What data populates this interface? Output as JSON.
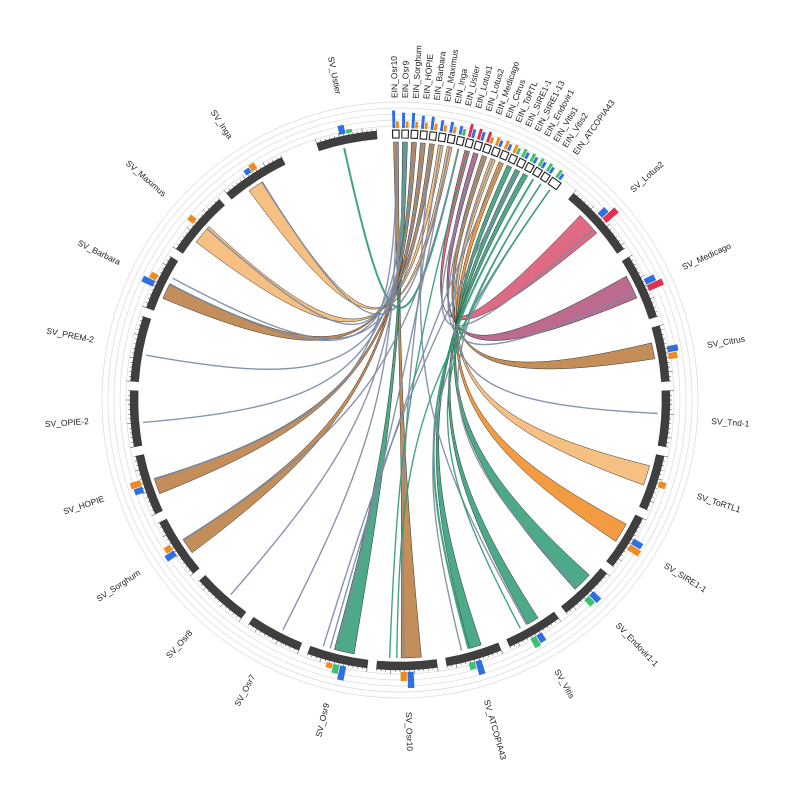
{
  "diagram": {
    "colors": {
      "arc_fill": "#3f3f3f",
      "ring_line": "#d9d9d9",
      "grey_link": "#7b8aa3",
      "green_link": "#2e9b73",
      "brown_link": "#b97a3c",
      "light_orange_link": "#f5b56c",
      "orange_link": "#f08a1e",
      "pink_link": "#d9506e",
      "mauve_link": "#b0507a",
      "bar_blue": "#2f6fe0",
      "bar_orange": "#f08a1e",
      "bar_green": "#3fbf6f",
      "bar_red": "#e0304a"
    },
    "segments": [
      {
        "label": "SV_Ustier"
      },
      {
        "label": "EIN_Osr10"
      },
      {
        "label": "EIN_Osr9"
      },
      {
        "label": "EIN_Sorghum"
      },
      {
        "label": "EIN_HOPIE"
      },
      {
        "label": "EIN_Barbara"
      },
      {
        "label": "EIN_Maximus"
      },
      {
        "label": "EIN_Inga"
      },
      {
        "label": "EIN_Ustier"
      },
      {
        "label": "EIN_Lotus1"
      },
      {
        "label": "EIN_Lotus2"
      },
      {
        "label": "EIN_Medicago"
      },
      {
        "label": "EIN_Citrus"
      },
      {
        "label": "EIN_ToRTL"
      },
      {
        "label": "EIN_SIRE1-1"
      },
      {
        "label": "EIN_SIRE1-13"
      },
      {
        "label": "EIN_Endovir1"
      },
      {
        "label": "EIN_Vitis1"
      },
      {
        "label": "EIN_Vitis2"
      },
      {
        "label": "EIN_ATCOPIA43"
      },
      {
        "label": "SV_Lotus2"
      },
      {
        "label": "SV_Medicago"
      },
      {
        "label": "SV_Citrus"
      },
      {
        "label": "SV_Tnd-1"
      },
      {
        "label": "SV_ToRTL1"
      },
      {
        "label": "SV_SIRE1-1"
      },
      {
        "label": "SV_Endovir1-1"
      },
      {
        "label": "SV_Vitis"
      },
      {
        "label": "SV_ATCOPIA43"
      },
      {
        "label": "SV_Osr10"
      },
      {
        "label": "SV_Osr9"
      },
      {
        "label": "SV_Osr7"
      },
      {
        "label": "SV_Osr8"
      },
      {
        "label": "SV_Sorghum"
      },
      {
        "label": "SV_HOPIE"
      },
      {
        "label": "SV_OPIE-2"
      },
      {
        "label": "SV_PREM-2"
      },
      {
        "label": "SV_Barbara"
      },
      {
        "label": "SV_Maximus"
      },
      {
        "label": "SV_Inga"
      }
    ],
    "links": [
      {
        "from": "EIN_Osr10",
        "to": "SV_Osr10",
        "color": "brown_link",
        "width": 5
      },
      {
        "from": "EIN_Osr9",
        "to": "SV_Osr9",
        "color": "green_link",
        "width": 5
      },
      {
        "from": "EIN_Sorghum",
        "to": "SV_Sorghum",
        "color": "brown_link",
        "width": 4
      },
      {
        "from": "EIN_HOPIE",
        "to": "SV_HOPIE",
        "color": "brown_link",
        "width": 4
      },
      {
        "from": "EIN_Barbara",
        "to": "SV_Barbara",
        "color": "brown_link",
        "width": 4
      },
      {
        "from": "EIN_Maximus",
        "to": "SV_Maximus",
        "color": "light_orange_link",
        "width": 5
      },
      {
        "from": "EIN_Inga",
        "to": "SV_Inga",
        "color": "light_orange_link",
        "width": 4
      },
      {
        "from": "EIN_Ustier",
        "to": "SV_Ustier",
        "color": "green_link",
        "width": 2
      },
      {
        "from": "EIN_Lotus1",
        "to": "SV_Lotus2",
        "color": "pink_link",
        "width": 6
      },
      {
        "from": "EIN_Lotus2",
        "to": "SV_Medicago",
        "color": "mauve_link",
        "width": 6
      },
      {
        "from": "EIN_Medicago",
        "to": "SV_Citrus",
        "color": "brown_link",
        "width": 4
      },
      {
        "from": "EIN_Citrus",
        "to": "SV_ToRTL1",
        "color": "light_orange_link",
        "width": 5
      },
      {
        "from": "EIN_ToRTL",
        "to": "SV_SIRE1-1",
        "color": "orange_link",
        "width": 5
      },
      {
        "from": "EIN_SIRE1-1",
        "to": "SV_Endovir1-1",
        "color": "green_link",
        "width": 5
      },
      {
        "from": "EIN_SIRE1-13",
        "to": "SV_Vitis",
        "color": "green_link",
        "width": 3
      },
      {
        "from": "EIN_Endovir1",
        "to": "SV_ATCOPIA43",
        "color": "green_link",
        "width": 3
      },
      {
        "from": "EIN_Vitis1",
        "to": "SV_ATCOPIA43",
        "color": "green_link",
        "width": 2
      },
      {
        "from": "EIN_Osr10",
        "to": "SV_Osr7",
        "color": "grey_link",
        "width": 1.4
      },
      {
        "from": "EIN_Osr9",
        "to": "SV_Osr8",
        "color": "grey_link",
        "width": 1.4
      },
      {
        "from": "EIN_Sorghum",
        "to": "SV_OPIE-2",
        "color": "grey_link",
        "width": 1.4
      },
      {
        "from": "EIN_HOPIE",
        "to": "SV_PREM-2",
        "color": "grey_link",
        "width": 1.4
      },
      {
        "from": "EIN_Barbara",
        "to": "SV_Vitis",
        "color": "grey_link",
        "width": 1.4
      },
      {
        "from": "EIN_Maximus",
        "to": "SV_Osr10",
        "color": "grey_link",
        "width": 1.4
      },
      {
        "from": "EIN_Inga",
        "to": "SV_Osr9",
        "color": "grey_link",
        "width": 1.4
      },
      {
        "from": "EIN_Ustier",
        "to": "SV_Sorghum",
        "color": "grey_link",
        "width": 1.4
      },
      {
        "from": "EIN_Osr10",
        "to": "SV_HOPIE",
        "color": "grey_link",
        "width": 1.4
      },
      {
        "from": "EIN_Sorghum",
        "to": "SV_Barbara",
        "color": "grey_link",
        "width": 1.4
      },
      {
        "from": "EIN_Osr9",
        "to": "SV_Maximus",
        "color": "grey_link",
        "width": 1.4
      },
      {
        "from": "EIN_Lotus2",
        "to": "SV_Lotus2",
        "color": "grey_link",
        "width": 1.4
      },
      {
        "from": "EIN_Medicago",
        "to": "SV_Medicago",
        "color": "grey_link",
        "width": 1.4
      },
      {
        "from": "EIN_Citrus",
        "to": "SV_Tnd-1",
        "color": "grey_link",
        "width": 1.4
      },
      {
        "from": "EIN_ToRTL",
        "to": "SV_Osr9",
        "color": "grey_link",
        "width": 1.4
      },
      {
        "from": "EIN_Vitis2",
        "to": "SV_Endovir1-1",
        "color": "grey_link",
        "width": 1.4
      },
      {
        "from": "EIN_ATCOPIA43",
        "to": "SV_ATCOPIA43",
        "color": "grey_link",
        "width": 1.4
      },
      {
        "from": "EIN_Vitis2",
        "to": "SV_Vitis",
        "color": "green_link",
        "width": 1.4
      },
      {
        "from": "EIN_ATCOPIA43",
        "to": "SV_Osr10",
        "color": "green_link",
        "width": 1.4
      },
      {
        "from": "EIN_Lotus1",
        "to": "SV_Osr10",
        "color": "green_link",
        "width": 1.4
      },
      {
        "from": "EIN_SIRE1-13",
        "to": "SV_Osr9",
        "color": "grey_link",
        "width": 1.4
      },
      {
        "from": "EIN_Inga",
        "to": "SV_Inga",
        "color": "grey_link",
        "width": 1.4
      },
      {
        "from": "EIN_Barbara",
        "to": "SV_Barbara",
        "color": "grey_link",
        "width": 1.4
      }
    ],
    "histograms": [
      {
        "segment": "SV_Ustier",
        "bars": [
          {
            "color": "bar_blue",
            "value": 0.5
          },
          {
            "color": "bar_green",
            "value": 0.2
          }
        ]
      },
      {
        "segment": "SV_Inga",
        "bars": [
          {
            "color": "bar_blue",
            "value": 0.3
          },
          {
            "color": "bar_orange",
            "value": 0.4
          }
        ]
      },
      {
        "segment": "SV_Maximus",
        "bars": [
          {
            "color": "bar_orange",
            "value": 0.4
          }
        ]
      },
      {
        "segment": "SV_Barbara",
        "bars": [
          {
            "color": "bar_blue",
            "value": 0.7
          },
          {
            "color": "bar_orange",
            "value": 0.4
          }
        ]
      },
      {
        "segment": "SV_HOPIE",
        "bars": [
          {
            "color": "bar_blue",
            "value": 0.5
          },
          {
            "color": "bar_orange",
            "value": 0.6
          }
        ]
      },
      {
        "segment": "SV_Sorghum",
        "bars": [
          {
            "color": "bar_blue",
            "value": 0.6
          },
          {
            "color": "bar_orange",
            "value": 0.4
          }
        ]
      },
      {
        "segment": "SV_Osr9",
        "bars": [
          {
            "color": "bar_blue",
            "value": 0.8
          },
          {
            "color": "bar_green",
            "value": 0.5
          },
          {
            "color": "bar_orange",
            "value": 0.3
          }
        ]
      },
      {
        "segment": "SV_Osr10",
        "bars": [
          {
            "color": "bar_blue",
            "value": 0.9
          },
          {
            "color": "bar_orange",
            "value": 0.5
          }
        ]
      },
      {
        "segment": "SV_ATCOPIA43",
        "bars": [
          {
            "color": "bar_blue",
            "value": 0.8
          },
          {
            "color": "bar_green",
            "value": 0.4
          }
        ]
      },
      {
        "segment": "SV_Vitis",
        "bars": [
          {
            "color": "bar_blue",
            "value": 0.5
          },
          {
            "color": "bar_green",
            "value": 0.6
          }
        ]
      },
      {
        "segment": "SV_Endovir1-1",
        "bars": [
          {
            "color": "bar_blue",
            "value": 0.6
          },
          {
            "color": "bar_green",
            "value": 0.5
          }
        ]
      },
      {
        "segment": "SV_SIRE1-1",
        "bars": [
          {
            "color": "bar_blue",
            "value": 0.6
          },
          {
            "color": "bar_orange",
            "value": 0.7
          }
        ]
      },
      {
        "segment": "SV_ToRTL1",
        "bars": [
          {
            "color": "bar_orange",
            "value": 0.4
          }
        ]
      },
      {
        "segment": "SV_Citrus",
        "bars": [
          {
            "color": "bar_blue",
            "value": 0.6
          },
          {
            "color": "bar_orange",
            "value": 0.5
          }
        ]
      },
      {
        "segment": "SV_Medicago",
        "bars": [
          {
            "color": "bar_blue",
            "value": 0.6
          },
          {
            "color": "bar_red",
            "value": 0.9
          }
        ]
      },
      {
        "segment": "SV_Lotus2",
        "bars": [
          {
            "color": "bar_blue",
            "value": 0.5
          },
          {
            "color": "bar_red",
            "value": 0.9
          }
        ]
      },
      {
        "segment": "EIN_Osr10",
        "bars": [
          {
            "color": "bar_blue",
            "value": 0.8
          },
          {
            "color": "bar_orange",
            "value": 0.3
          }
        ]
      },
      {
        "segment": "EIN_Osr9",
        "bars": [
          {
            "color": "bar_blue",
            "value": 0.7
          },
          {
            "color": "bar_orange",
            "value": 0.3
          }
        ]
      },
      {
        "segment": "EIN_Sorghum",
        "bars": [
          {
            "color": "bar_blue",
            "value": 0.7
          },
          {
            "color": "bar_orange",
            "value": 0.3
          }
        ]
      },
      {
        "segment": "EIN_HOPIE",
        "bars": [
          {
            "color": "bar_blue",
            "value": 0.6
          },
          {
            "color": "bar_orange",
            "value": 0.3
          }
        ]
      },
      {
        "segment": "EIN_Barbara",
        "bars": [
          {
            "color": "bar_blue",
            "value": 0.6
          },
          {
            "color": "bar_orange",
            "value": 0.3
          }
        ]
      },
      {
        "segment": "EIN_Maximus",
        "bars": [
          {
            "color": "bar_blue",
            "value": 0.5
          },
          {
            "color": "bar_orange",
            "value": 0.3
          }
        ]
      },
      {
        "segment": "EIN_Inga",
        "bars": [
          {
            "color": "bar_blue",
            "value": 0.5
          },
          {
            "color": "bar_orange",
            "value": 0.3
          }
        ]
      },
      {
        "segment": "EIN_Ustier",
        "bars": [
          {
            "color": "bar_blue",
            "value": 0.4
          },
          {
            "color": "bar_green",
            "value": 0.3
          }
        ]
      },
      {
        "segment": "EIN_Lotus1",
        "bars": [
          {
            "color": "bar_red",
            "value": 0.6
          },
          {
            "color": "bar_blue",
            "value": 0.4
          }
        ]
      },
      {
        "segment": "EIN_Lotus2",
        "bars": [
          {
            "color": "bar_red",
            "value": 0.5
          },
          {
            "color": "bar_blue",
            "value": 0.4
          }
        ]
      },
      {
        "segment": "EIN_Medicago",
        "bars": [
          {
            "color": "bar_red",
            "value": 0.5
          },
          {
            "color": "bar_orange",
            "value": 0.3
          }
        ]
      },
      {
        "segment": "EIN_Citrus",
        "bars": [
          {
            "color": "bar_orange",
            "value": 0.4
          },
          {
            "color": "bar_blue",
            "value": 0.3
          }
        ]
      },
      {
        "segment": "EIN_ToRTL",
        "bars": [
          {
            "color": "bar_orange",
            "value": 0.4
          },
          {
            "color": "bar_blue",
            "value": 0.3
          }
        ]
      },
      {
        "segment": "EIN_SIRE1-1",
        "bars": [
          {
            "color": "bar_orange",
            "value": 0.4
          },
          {
            "color": "bar_green",
            "value": 0.3
          }
        ]
      },
      {
        "segment": "EIN_SIRE1-13",
        "bars": [
          {
            "color": "bar_green",
            "value": 0.4
          },
          {
            "color": "bar_blue",
            "value": 0.3
          }
        ]
      },
      {
        "segment": "EIN_Endovir1",
        "bars": [
          {
            "color": "bar_green",
            "value": 0.4
          },
          {
            "color": "bar_blue",
            "value": 0.3
          }
        ]
      },
      {
        "segment": "EIN_Vitis1",
        "bars": [
          {
            "color": "bar_green",
            "value": 0.4
          },
          {
            "color": "bar_blue",
            "value": 0.3
          }
        ]
      },
      {
        "segment": "EIN_Vitis2",
        "bars": [
          {
            "color": "bar_green",
            "value": 0.4
          },
          {
            "color": "bar_blue",
            "value": 0.3
          }
        ]
      },
      {
        "segment": "EIN_ATCOPIA43",
        "bars": [
          {
            "color": "bar_green",
            "value": 0.4
          },
          {
            "color": "bar_blue",
            "value": 0.3
          }
        ]
      }
    ]
  }
}
